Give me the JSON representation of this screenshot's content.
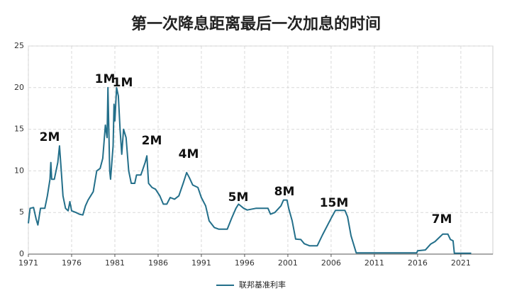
{
  "chart_data": {
    "type": "line",
    "title": "第一次降息距离最后一次加息的时间",
    "x": [
      1971.0,
      1971.2,
      1971.6,
      1971.9,
      1972.1,
      1972.4,
      1972.9,
      1973.2,
      1973.5,
      1973.6,
      1973.7,
      1974.0,
      1974.4,
      1974.6,
      1974.8,
      1975.0,
      1975.3,
      1975.6,
      1975.8,
      1976.0,
      1976.5,
      1976.9,
      1977.3,
      1977.6,
      1977.9,
      1978.5,
      1978.9,
      1979.3,
      1979.6,
      1979.9,
      1980.1,
      1980.2,
      1980.4,
      1980.5,
      1980.8,
      1980.9,
      1981.0,
      1981.2,
      1981.4,
      1981.6,
      1981.8,
      1982.0,
      1982.3,
      1982.6,
      1982.9,
      1983.3,
      1983.5,
      1984.0,
      1984.5,
      1984.7,
      1984.9,
      1985.3,
      1985.7,
      1986.2,
      1986.6,
      1987.0,
      1987.4,
      1987.9,
      1988.4,
      1988.9,
      1989.3,
      1989.6,
      1990.0,
      1990.6,
      1991.0,
      1991.5,
      1991.9,
      1992.5,
      1993.0,
      1994.0,
      1994.5,
      1995.0,
      1995.3,
      1995.9,
      1996.3,
      1997.3,
      1998.7,
      1999.0,
      1999.5,
      2000.2,
      2000.5,
      2000.9,
      2001.1,
      2001.5,
      2001.9,
      2002.5,
      2002.9,
      2003.5,
      2004.4,
      2005.0,
      2006.0,
      2006.5,
      2007.6,
      2007.9,
      2008.3,
      2008.9,
      2015.9,
      2016.0,
      2016.9,
      2017.5,
      2018.0,
      2018.5,
      2018.9,
      2019.5,
      2019.8,
      2020.1,
      2020.25,
      2022.2
    ],
    "series": [
      {
        "name": "联邦基准利率",
        "color": "#236f8a",
        "values": [
          3.7,
          5.5,
          5.6,
          4.2,
          3.5,
          5.5,
          5.5,
          7.0,
          9.0,
          11.0,
          9.0,
          9.0,
          11.0,
          13.0,
          10.0,
          7.0,
          5.5,
          5.2,
          6.3,
          5.2,
          5.0,
          4.8,
          4.7,
          5.8,
          6.5,
          7.5,
          10.0,
          10.3,
          11.5,
          15.5,
          14.0,
          20.0,
          10.0,
          9.0,
          13.0,
          18.0,
          16.0,
          20.0,
          19.0,
          15.0,
          12.0,
          15.0,
          14.0,
          10.0,
          8.5,
          8.5,
          9.5,
          9.5,
          11.0,
          11.8,
          8.5,
          8.0,
          7.8,
          7.0,
          6.0,
          6.0,
          6.8,
          6.6,
          7.0,
          8.5,
          9.8,
          9.2,
          8.3,
          8.0,
          6.8,
          5.8,
          4.0,
          3.2,
          3.0,
          3.0,
          4.3,
          5.5,
          6.0,
          5.5,
          5.3,
          5.5,
          5.5,
          4.8,
          5.0,
          5.8,
          6.5,
          6.5,
          5.5,
          4.0,
          1.8,
          1.75,
          1.25,
          1.0,
          1.0,
          2.3,
          4.3,
          5.25,
          5.25,
          4.5,
          2.2,
          0.15,
          0.15,
          0.4,
          0.5,
          1.2,
          1.5,
          2.0,
          2.4,
          2.4,
          1.75,
          1.6,
          0.1,
          0.1
        ]
      }
    ],
    "xlim": [
      1971,
      2024.7
    ],
    "xticks": [
      1971,
      1976,
      1981,
      1986,
      1991,
      1996,
      2001,
      2006,
      2011,
      2016,
      2021
    ],
    "ylim": [
      0,
      25
    ],
    "yticks": [
      0,
      5,
      10,
      15,
      20,
      25
    ],
    "grid": true,
    "annotations": [
      "1M",
      "1M",
      "2M",
      "2M",
      "4M",
      "5M",
      "8M",
      "15M",
      "7M"
    ]
  }
}
